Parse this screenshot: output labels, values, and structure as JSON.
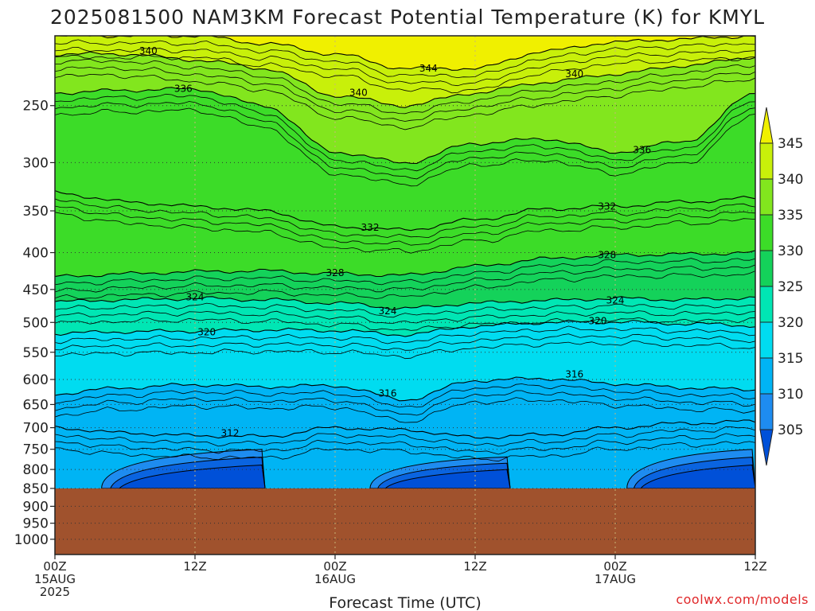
{
  "chart_data": {
    "type": "heatmap",
    "title": "2025081500 NAM3KM Forecast Potential Temperature (K) for KMYL",
    "xlabel": "Forecast Time (UTC)",
    "ylabel": "",
    "x_ticks": [
      {
        "hours": 0,
        "lines": [
          "00Z",
          "15AUG",
          "2025"
        ]
      },
      {
        "hours": 12,
        "lines": [
          "12Z"
        ]
      },
      {
        "hours": 24,
        "lines": [
          "00Z",
          "16AUG"
        ]
      },
      {
        "hours": 36,
        "lines": [
          "12Z"
        ]
      },
      {
        "hours": 48,
        "lines": [
          "00Z",
          "17AUG"
        ]
      },
      {
        "hours": 60,
        "lines": [
          "12Z"
        ]
      }
    ],
    "xlim_hours": [
      0,
      60
    ],
    "y_ticks": [
      250,
      300,
      350,
      400,
      450,
      500,
      550,
      600,
      650,
      700,
      750,
      800,
      850,
      900,
      950,
      1000
    ],
    "ylim_hPa": [
      200,
      1050
    ],
    "y_scale": "log-pressure",
    "grid": true,
    "surface_pressure_hPa": 850,
    "colorbar": {
      "levels": [
        305,
        310,
        315,
        320,
        325,
        330,
        335,
        340,
        345
      ],
      "colors": [
        "#0050d8",
        "#1e8cf0",
        "#00b4f4",
        "#00dcf0",
        "#00e6b4",
        "#14d25a",
        "#3cdc28",
        "#82e61e",
        "#c8f00a",
        "#f0f000"
      ],
      "extend": "both"
    },
    "contour_labels": [
      {
        "text": "340",
        "hour": 8.0,
        "hPa": 210
      },
      {
        "text": "336",
        "hour": 11.0,
        "hPa": 237
      },
      {
        "text": "344",
        "hour": 32.0,
        "hPa": 222
      },
      {
        "text": "340",
        "hour": 26.0,
        "hPa": 240
      },
      {
        "text": "340",
        "hour": 44.5,
        "hPa": 226
      },
      {
        "text": "336",
        "hour": 50.3,
        "hPa": 288
      },
      {
        "text": "332",
        "hour": 47.3,
        "hPa": 345
      },
      {
        "text": "332",
        "hour": 27.0,
        "hPa": 369
      },
      {
        "text": "328",
        "hour": 47.3,
        "hPa": 403
      },
      {
        "text": "328",
        "hour": 24.0,
        "hPa": 427
      },
      {
        "text": "324",
        "hour": 12.0,
        "hPa": 461
      },
      {
        "text": "324",
        "hour": 28.5,
        "hPa": 482
      },
      {
        "text": "324",
        "hour": 48.0,
        "hPa": 466
      },
      {
        "text": "320",
        "hour": 13.0,
        "hPa": 516
      },
      {
        "text": "320",
        "hour": 46.5,
        "hPa": 498
      },
      {
        "text": "316",
        "hour": 28.5,
        "hPa": 627
      },
      {
        "text": "316",
        "hour": 44.5,
        "hPa": 590
      },
      {
        "text": "312",
        "hour": 15.0,
        "hPa": 712
      }
    ],
    "series": [
      {
        "level_K": 312,
        "hours": [
          0,
          6,
          12,
          18,
          24,
          30,
          36,
          42,
          48,
          54,
          60
        ],
        "pressure_hPa": [
          700,
          712,
          718,
          720,
          700,
          705,
          722,
          716,
          700,
          690,
          686
        ]
      },
      {
        "level_K": 316,
        "hours": [
          0,
          6,
          12,
          18,
          24,
          30,
          36,
          42,
          48,
          54,
          60
        ],
        "pressure_hPa": [
          628,
          616,
          610,
          614,
          612,
          640,
          602,
          598,
          608,
          616,
          620
        ]
      },
      {
        "level_K": 320,
        "hours": [
          0,
          6,
          12,
          18,
          24,
          30,
          36,
          42,
          48,
          54,
          60
        ],
        "pressure_hPa": [
          518,
          515,
          514,
          512,
          513,
          520,
          506,
          500,
          499,
          502,
          505
        ]
      },
      {
        "level_K": 324,
        "hours": [
          0,
          6,
          12,
          18,
          24,
          30,
          36,
          42,
          48,
          54,
          60
        ],
        "pressure_hPa": [
          468,
          465,
          463,
          465,
          470,
          478,
          470,
          466,
          463,
          465,
          462
        ]
      },
      {
        "level_K": 328,
        "hours": [
          0,
          6,
          12,
          18,
          24,
          30,
          36,
          42,
          48,
          54,
          60
        ],
        "pressure_hPa": [
          432,
          428,
          425,
          424,
          428,
          430,
          418,
          408,
          403,
          402,
          400
        ]
      },
      {
        "level_K": 332,
        "hours": [
          0,
          6,
          12,
          18,
          24,
          30,
          36,
          42,
          48,
          54,
          60
        ],
        "pressure_hPa": [
          330,
          340,
          345,
          350,
          368,
          372,
          360,
          348,
          345,
          340,
          336
        ]
      },
      {
        "level_K": 336,
        "hours": [
          0,
          6,
          12,
          18,
          24,
          30,
          36,
          42,
          48,
          54,
          60
        ],
        "pressure_hPa": [
          240,
          238,
          237,
          250,
          290,
          300,
          282,
          278,
          290,
          280,
          240
        ]
      },
      {
        "level_K": 340,
        "hours": [
          0,
          6,
          12,
          18,
          24,
          30,
          36,
          42,
          48,
          54,
          60
        ],
        "pressure_hPa": [
          212,
          212,
          216,
          222,
          242,
          250,
          240,
          232,
          226,
          220,
          214
        ]
      },
      {
        "level_K": 344,
        "hours": [
          0,
          6,
          12,
          18,
          24,
          30,
          36,
          42,
          48,
          54,
          60
        ],
        "pressure_hPa": [
          200,
          200,
          200,
          205,
          212,
          222,
          222,
          210,
          204,
          202,
          200
        ]
      }
    ],
    "warm_cool_cells": [
      {
        "note": "low-level 308 K contours",
        "hours": [
          4,
          18
        ],
        "pressure_hPa": [
          740,
          850
        ]
      },
      {
        "note": "low-level 308 K contours",
        "hours": [
          27,
          39
        ],
        "pressure_hPa": [
          760,
          850
        ]
      },
      {
        "note": "low-level 308 K contours",
        "hours": [
          49,
          60
        ],
        "pressure_hPa": [
          740,
          850
        ]
      }
    ]
  },
  "credit": "coolwx.com/models"
}
